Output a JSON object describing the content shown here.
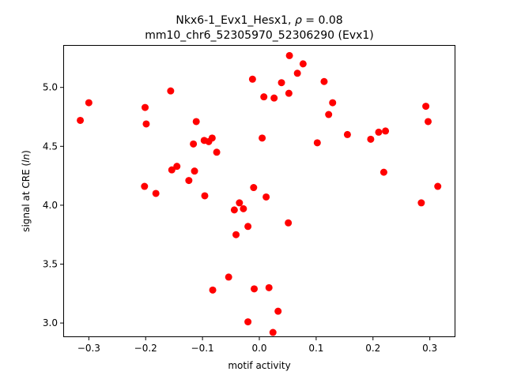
{
  "chart_data": {
    "type": "scatter",
    "title_line1_prefix": "Nkx6-1_Evx1_Hesx1, ",
    "title_rho_symbol": "ρ",
    "title_line1_suffix": " = 0.08",
    "title_line2": "mm10_chr6_52305970_52306290 (Evx1)",
    "xlabel": "motif activity",
    "ylabel_prefix": "signal at CRE (",
    "ylabel_italic": "ln",
    "ylabel_suffix": ")",
    "xlim": [
      -0.345,
      0.345
    ],
    "ylim": [
      2.88,
      5.36
    ],
    "xticks": [
      -0.3,
      -0.2,
      -0.1,
      0.0,
      0.1,
      0.2,
      0.3
    ],
    "xtick_labels": [
      "−0.3",
      "−0.2",
      "−0.1",
      "0.0",
      "0.1",
      "0.2",
      "0.3"
    ],
    "yticks": [
      3.0,
      3.5,
      4.0,
      4.5,
      5.0
    ],
    "ytick_labels": [
      "3.0",
      "3.5",
      "4.0",
      "4.5",
      "5.0"
    ],
    "marker_color": "#ff0000",
    "grid": false,
    "legend": "none",
    "points": [
      {
        "x": -0.315,
        "y": 4.72
      },
      {
        "x": -0.3,
        "y": 4.87
      },
      {
        "x": -0.201,
        "y": 4.83
      },
      {
        "x": -0.199,
        "y": 4.69
      },
      {
        "x": -0.202,
        "y": 4.16
      },
      {
        "x": -0.182,
        "y": 4.1
      },
      {
        "x": -0.156,
        "y": 4.97
      },
      {
        "x": -0.154,
        "y": 4.3
      },
      {
        "x": -0.145,
        "y": 4.33
      },
      {
        "x": -0.124,
        "y": 4.21
      },
      {
        "x": -0.116,
        "y": 4.52
      },
      {
        "x": -0.114,
        "y": 4.29
      },
      {
        "x": -0.111,
        "y": 4.71
      },
      {
        "x": -0.097,
        "y": 4.55
      },
      {
        "x": -0.096,
        "y": 4.08
      },
      {
        "x": -0.089,
        "y": 4.54
      },
      {
        "x": -0.083,
        "y": 4.57
      },
      {
        "x": -0.075,
        "y": 4.45
      },
      {
        "x": -0.082,
        "y": 3.28
      },
      {
        "x": -0.054,
        "y": 3.39
      },
      {
        "x": -0.044,
        "y": 3.96
      },
      {
        "x": -0.041,
        "y": 3.75
      },
      {
        "x": -0.035,
        "y": 4.02
      },
      {
        "x": -0.028,
        "y": 3.97
      },
      {
        "x": -0.02,
        "y": 3.82
      },
      {
        "x": -0.02,
        "y": 3.01
      },
      {
        "x": -0.012,
        "y": 5.07
      },
      {
        "x": -0.01,
        "y": 4.15
      },
      {
        "x": -0.009,
        "y": 3.29
      },
      {
        "x": 0.005,
        "y": 4.57
      },
      {
        "x": 0.008,
        "y": 4.92
      },
      {
        "x": 0.012,
        "y": 4.07
      },
      {
        "x": 0.017,
        "y": 3.3
      },
      {
        "x": 0.024,
        "y": 2.92
      },
      {
        "x": 0.026,
        "y": 4.91
      },
      {
        "x": 0.033,
        "y": 3.1
      },
      {
        "x": 0.039,
        "y": 5.04
      },
      {
        "x": 0.051,
        "y": 3.85
      },
      {
        "x": 0.052,
        "y": 4.95
      },
      {
        "x": 0.053,
        "y": 5.27
      },
      {
        "x": 0.067,
        "y": 5.12
      },
      {
        "x": 0.077,
        "y": 5.2
      },
      {
        "x": 0.102,
        "y": 4.53
      },
      {
        "x": 0.114,
        "y": 5.05
      },
      {
        "x": 0.122,
        "y": 4.77
      },
      {
        "x": 0.129,
        "y": 4.87
      },
      {
        "x": 0.155,
        "y": 4.6
      },
      {
        "x": 0.196,
        "y": 4.56
      },
      {
        "x": 0.21,
        "y": 4.62
      },
      {
        "x": 0.219,
        "y": 4.28
      },
      {
        "x": 0.222,
        "y": 4.63
      },
      {
        "x": 0.285,
        "y": 4.02
      },
      {
        "x": 0.293,
        "y": 4.84
      },
      {
        "x": 0.297,
        "y": 4.71
      },
      {
        "x": 0.314,
        "y": 4.16
      }
    ]
  }
}
